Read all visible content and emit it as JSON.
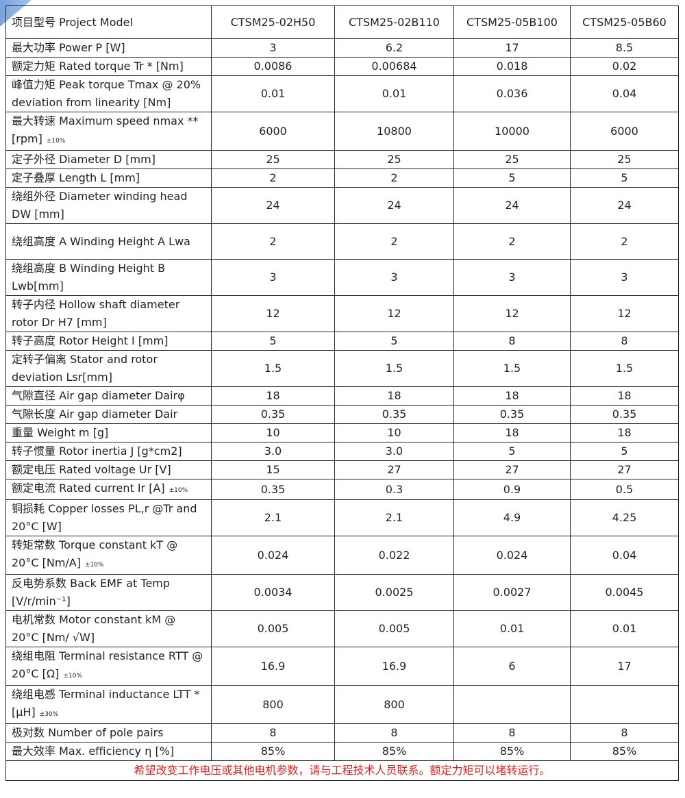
{
  "header": {
    "label": "项目型号 Project Model",
    "models": [
      "CTSM25-02H50",
      "CTSM25-02B110",
      "CTSM25-05B100",
      "CTSM25-05B60"
    ]
  },
  "rows": [
    {
      "label": "最大功率 Power P [W]",
      "tol": "",
      "values": [
        "3",
        "6.2",
        "17",
        "8.5"
      ]
    },
    {
      "label": "额定力矩 Rated torque Tr * [Nm]",
      "tol": "",
      "values": [
        "0.0086",
        "0.00684",
        "0.018",
        "0.02"
      ]
    },
    {
      "label": "峰值力矩 Peak torque Tmax @ 20% deviation from linearity [Nm]",
      "tol": "",
      "values": [
        "0.01",
        "0.01",
        "0.036",
        "0.04"
      ]
    },
    {
      "label": "最大转速  Maximum speed nmax ** [rpm]",
      "tol": "±10%",
      "values": [
        "6000",
        "10800",
        "10000",
        "6000"
      ]
    },
    {
      "label": "定子外径 Diameter D [mm]",
      "tol": "",
      "values": [
        "25",
        "25",
        "25",
        "25"
      ]
    },
    {
      "label": "定子叠厚 Length L [mm]",
      "tol": "",
      "values": [
        "2",
        "2",
        "5",
        "5"
      ]
    },
    {
      "label": "绕组外径 Diameter winding head DW [mm]",
      "tol": "",
      "values": [
        "24",
        "24",
        "24",
        "24"
      ]
    },
    {
      "label": "绕组高度 A Winding Height A Lwa",
      "tol": "",
      "values": [
        "2",
        "2",
        "2",
        "2"
      ]
    },
    {
      "label": "绕组高度 B Winding Height B Lwb[mm]",
      "tol": "",
      "values": [
        "3",
        "3",
        "3",
        "3"
      ]
    },
    {
      "label": "转子内径 Hollow shaft diameter rotor Dr H7 [mm]",
      "tol": "",
      "values": [
        "12",
        "12",
        "12",
        "12"
      ]
    },
    {
      "label": "转子高度 Rotor Height I [mm]",
      "tol": "",
      "values": [
        "5",
        "5",
        "8",
        "8"
      ]
    },
    {
      "label": "定转子偏离 Stator and rotor deviation Lsr[mm]",
      "tol": "",
      "values": [
        "1.5",
        "1.5",
        "1.5",
        "1.5"
      ]
    },
    {
      "label": "气隙直径  Air gap diameter Dairφ",
      "tol": "",
      "values": [
        "18",
        "18",
        "18",
        "18"
      ]
    },
    {
      "label": "气隙长度  Air gap diameter Dair",
      "tol": "",
      "values": [
        "0.35",
        "0.35",
        "0.35",
        "0.35"
      ]
    },
    {
      "label": "重量 Weight m [g]",
      "tol": "",
      "values": [
        "10",
        "10",
        "18",
        "18"
      ]
    },
    {
      "label": "转子惯量 Rotor inertia J [g*cm2]",
      "tol": "",
      "values": [
        "3.0",
        "3.0",
        "5",
        "5"
      ]
    },
    {
      "label": "额定电压 Rated voltage Ur [V]",
      "tol": "",
      "values": [
        "15",
        "27",
        "27",
        "27"
      ]
    },
    {
      "label": "额定电流 Rated current Ir [A]",
      "tol": "±10%",
      "values": [
        "0.35",
        "0.3",
        "0.9",
        "0.5"
      ]
    },
    {
      "label": "铜损耗 Copper losses PL,r @Tr and 20°C [W]",
      "tol": "",
      "values": [
        "2.1",
        "2.1",
        "4.9",
        "4.25"
      ]
    },
    {
      "label": "转矩常数 Torque constant kT @ 20°C [Nm/A]",
      "tol": "±10%",
      "values": [
        "0.024",
        "0.022",
        "0.024",
        "0.04"
      ]
    },
    {
      "label": "反电势系数 Back EMF at Temp [V/r/min⁻¹]",
      "tol": "",
      "values": [
        "0.0034",
        "0.0025",
        "0.0027",
        "0.0045"
      ]
    },
    {
      "label": "电机常数 Motor constant kM @ 20°C [Nm/ √W]",
      "tol": "",
      "values": [
        "0.005",
        "0.005",
        "0.01",
        "0.01"
      ]
    },
    {
      "label": "绕组电阻 Terminal resistance RTT @ 20°C [Ω]",
      "tol": "±10%",
      "values": [
        "16.9",
        "16.9",
        "6",
        "17"
      ]
    },
    {
      "label": "绕组电感 Terminal inductance LTT * [μH]",
      "tol": "±30%",
      "values": [
        "800",
        "800",
        "",
        ""
      ]
    },
    {
      "label": "极对数 Number of pole pairs",
      "tol": "",
      "values": [
        "8",
        "8",
        "8",
        "8"
      ]
    },
    {
      "label": "最大效率 Max. efficiency  η  [%]",
      "tol": "",
      "values": [
        "85%",
        "85%",
        "85%",
        "85%"
      ]
    }
  ],
  "footer": "希望改变工作电压或其他电机参数，请与工程技术人员联系。额定力矩可以堵转运行。"
}
